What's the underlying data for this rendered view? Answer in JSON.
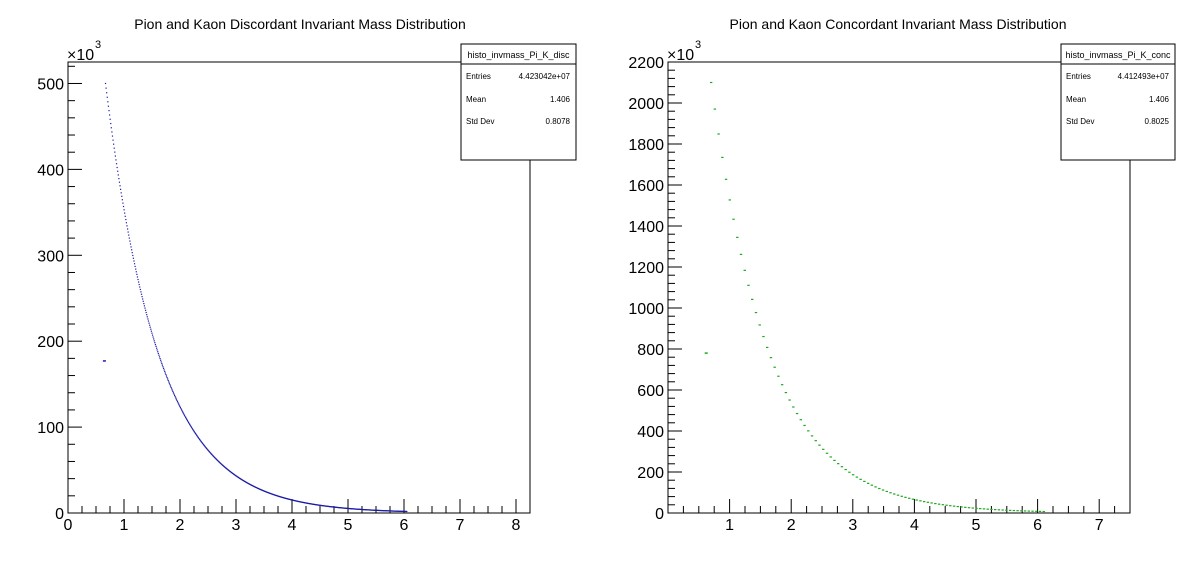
{
  "chart_data": [
    {
      "type": "scatter",
      "title": "Pion and Kaon Discordant Invariant Mass Distribution",
      "xlabel": "",
      "ylabel": "",
      "y_multiplier_label": "×10",
      "y_multiplier_exponent": "3",
      "xlim": [
        0,
        8.25
      ],
      "ylim": [
        0,
        525
      ],
      "x_ticks": [
        "0",
        "1",
        "2",
        "3",
        "4",
        "5",
        "6",
        "7",
        "8"
      ],
      "y_ticks": [
        "0",
        "100",
        "200",
        "300",
        "400",
        "500"
      ],
      "color": "#1a1aa6",
      "outlier": {
        "x": 0.65,
        "y": 177
      },
      "curve": {
        "x_start": 0.67,
        "x_end": 6.05,
        "y_start": 500,
        "decay": 1.05
      },
      "stats": {
        "name": "histo_invmass_Pi_K_disc",
        "rows": [
          {
            "label": "Entries",
            "value": "4.423042e+07"
          },
          {
            "label": "Mean",
            "value": "1.406"
          },
          {
            "label": "Std Dev",
            "value": "0.8078"
          }
        ]
      }
    },
    {
      "type": "scatter",
      "title": "Pion and Kaon Concordant Invariant Mass Distribution",
      "xlabel": "",
      "ylabel": "",
      "y_multiplier_label": "×10",
      "y_multiplier_exponent": "3",
      "xlim": [
        0,
        7.5
      ],
      "ylim": [
        0,
        2200
      ],
      "x_ticks": [
        "1",
        "2",
        "3",
        "4",
        "5",
        "6",
        "7"
      ],
      "y_ticks": [
        "0",
        "200",
        "400",
        "600",
        "800",
        "1000",
        "1200",
        "1400",
        "1600",
        "1800",
        "2000",
        "2200"
      ],
      "color": "#1fa81f",
      "outlier": {
        "x": 0.62,
        "y": 780
      },
      "curve": {
        "x_start": 0.7,
        "x_end": 6.1,
        "y_start": 2100,
        "decay": 1.05
      },
      "stats": {
        "name": "histo_invmass_Pi_K_conc",
        "rows": [
          {
            "label": "Entries",
            "value": "4.412493e+07"
          },
          {
            "label": "Mean",
            "value": "1.406"
          },
          {
            "label": "Std Dev",
            "value": "0.8025"
          }
        ]
      }
    }
  ]
}
